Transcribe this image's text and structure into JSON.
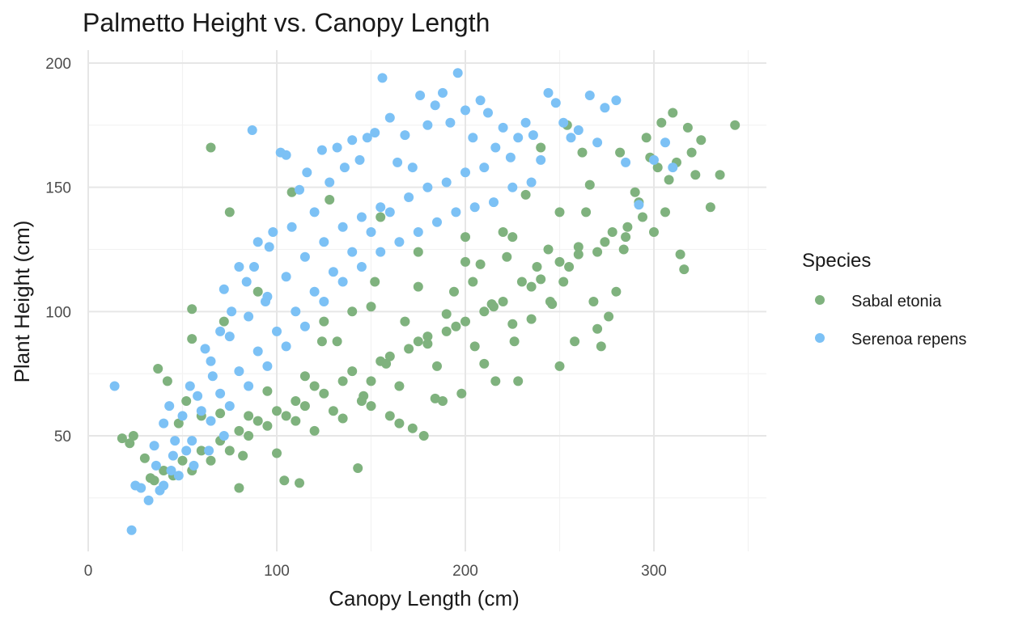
{
  "colors": {
    "sabal": "#7FB27E",
    "serenoa": "#7CC1F5",
    "grid_major": "#E6E6E6",
    "grid_minor": "#F2F2F2",
    "text": "#1A1A1A",
    "tick_text": "#4D4D4D"
  },
  "chart_data": {
    "type": "scatter",
    "title": "Palmetto Height vs. Canopy Length",
    "xlabel": "Canopy Length (cm)",
    "ylabel": "Plant Height (cm)",
    "xlim": [
      -1,
      360
    ],
    "ylim": [
      5,
      200
    ],
    "x_ticks": [
      0,
      100,
      200,
      300
    ],
    "y_ticks": [
      50,
      100,
      150,
      200
    ],
    "grid": true,
    "legend": {
      "title": "Species",
      "position": "right"
    },
    "series": [
      {
        "name": "Sabal etonia",
        "color": "#7FB27E",
        "points": [
          [
            18,
            49
          ],
          [
            22,
            47
          ],
          [
            24,
            50
          ],
          [
            30,
            41
          ],
          [
            33,
            33
          ],
          [
            37,
            77
          ],
          [
            42,
            72
          ],
          [
            48,
            55
          ],
          [
            52,
            64
          ],
          [
            55,
            101
          ],
          [
            55,
            89
          ],
          [
            60,
            58
          ],
          [
            65,
            166
          ],
          [
            70,
            59
          ],
          [
            72,
            96
          ],
          [
            75,
            140
          ],
          [
            80,
            29
          ],
          [
            82,
            42
          ],
          [
            85,
            58
          ],
          [
            90,
            108
          ],
          [
            95,
            68
          ],
          [
            100,
            43
          ],
          [
            104,
            32
          ],
          [
            108,
            148
          ],
          [
            110,
            56
          ],
          [
            112,
            31
          ],
          [
            115,
            74
          ],
          [
            120,
            52
          ],
          [
            124,
            88
          ],
          [
            128,
            145
          ],
          [
            132,
            88
          ],
          [
            135,
            57
          ],
          [
            140,
            100
          ],
          [
            143,
            37
          ],
          [
            146,
            66
          ],
          [
            150,
            62
          ],
          [
            152,
            112
          ],
          [
            155,
            138
          ],
          [
            158,
            79
          ],
          [
            160,
            58
          ],
          [
            165,
            55
          ],
          [
            168,
            96
          ],
          [
            172,
            53
          ],
          [
            175,
            124
          ],
          [
            178,
            50
          ],
          [
            180,
            87
          ],
          [
            184,
            65
          ],
          [
            188,
            64
          ],
          [
            190,
            99
          ],
          [
            194,
            108
          ],
          [
            198,
            67
          ],
          [
            200,
            130
          ],
          [
            204,
            112
          ],
          [
            208,
            119
          ],
          [
            210,
            79
          ],
          [
            214,
            103
          ],
          [
            216,
            72
          ],
          [
            220,
            132
          ],
          [
            222,
            122
          ],
          [
            226,
            88
          ],
          [
            228,
            72
          ],
          [
            232,
            147
          ],
          [
            235,
            97
          ],
          [
            238,
            118
          ],
          [
            240,
            166
          ],
          [
            244,
            125
          ],
          [
            246,
            103
          ],
          [
            250,
            78
          ],
          [
            252,
            112
          ],
          [
            254,
            175
          ],
          [
            258,
            88
          ],
          [
            260,
            123
          ],
          [
            262,
            164
          ],
          [
            264,
            140
          ],
          [
            266,
            151
          ],
          [
            268,
            104
          ],
          [
            270,
            93
          ],
          [
            272,
            86
          ],
          [
            274,
            128
          ],
          [
            276,
            98
          ],
          [
            278,
            132
          ],
          [
            280,
            108
          ],
          [
            282,
            164
          ],
          [
            284,
            125
          ],
          [
            286,
            134
          ],
          [
            290,
            148
          ],
          [
            292,
            144
          ],
          [
            294,
            138
          ],
          [
            296,
            170
          ],
          [
            298,
            162
          ],
          [
            300,
            132
          ],
          [
            302,
            158
          ],
          [
            304,
            176
          ],
          [
            306,
            140
          ],
          [
            308,
            153
          ],
          [
            310,
            180
          ],
          [
            312,
            160
          ],
          [
            314,
            123
          ],
          [
            316,
            117
          ],
          [
            318,
            174
          ],
          [
            320,
            164
          ],
          [
            322,
            155
          ],
          [
            325,
            169
          ],
          [
            330,
            142
          ],
          [
            335,
            155
          ],
          [
            343,
            175
          ],
          [
            150,
            72
          ],
          [
            170,
            85
          ],
          [
            190,
            92
          ],
          [
            210,
            100
          ],
          [
            230,
            112
          ],
          [
            250,
            120
          ],
          [
            120,
            70
          ],
          [
            140,
            76
          ],
          [
            160,
            82
          ],
          [
            180,
            90
          ],
          [
            200,
            96
          ],
          [
            220,
            104
          ],
          [
            240,
            113
          ],
          [
            260,
            126
          ],
          [
            130,
            60
          ],
          [
            145,
            64
          ],
          [
            165,
            70
          ],
          [
            185,
            78
          ],
          [
            205,
            86
          ],
          [
            225,
            95
          ],
          [
            245,
            104
          ],
          [
            100,
            60
          ],
          [
            110,
            64
          ],
          [
            90,
            56
          ],
          [
            80,
            52
          ],
          [
            70,
            48
          ],
          [
            60,
            44
          ],
          [
            50,
            40
          ],
          [
            40,
            36
          ],
          [
            35,
            32
          ],
          [
            45,
            34
          ],
          [
            55,
            36
          ],
          [
            65,
            40
          ],
          [
            75,
            44
          ],
          [
            85,
            50
          ],
          [
            95,
            54
          ],
          [
            105,
            58
          ],
          [
            115,
            62
          ],
          [
            125,
            67
          ],
          [
            135,
            72
          ],
          [
            155,
            80
          ],
          [
            175,
            88
          ],
          [
            195,
            94
          ],
          [
            215,
            102
          ],
          [
            235,
            110
          ],
          [
            255,
            118
          ],
          [
            270,
            124
          ],
          [
            285,
            130
          ],
          [
            125,
            96
          ],
          [
            150,
            102
          ],
          [
            175,
            110
          ],
          [
            200,
            120
          ],
          [
            225,
            130
          ],
          [
            250,
            140
          ]
        ]
      },
      {
        "name": "Serenoa repens",
        "color": "#7CC1F5",
        "points": [
          [
            14,
            70
          ],
          [
            23,
            12
          ],
          [
            25,
            30
          ],
          [
            28,
            29
          ],
          [
            32,
            24
          ],
          [
            35,
            46
          ],
          [
            38,
            28
          ],
          [
            40,
            55
          ],
          [
            43,
            62
          ],
          [
            46,
            48
          ],
          [
            50,
            58
          ],
          [
            54,
            70
          ],
          [
            58,
            66
          ],
          [
            62,
            85
          ],
          [
            66,
            74
          ],
          [
            70,
            92
          ],
          [
            72,
            109
          ],
          [
            76,
            100
          ],
          [
            80,
            118
          ],
          [
            84,
            112
          ],
          [
            87,
            173
          ],
          [
            90,
            128
          ],
          [
            94,
            104
          ],
          [
            98,
            132
          ],
          [
            102,
            164
          ],
          [
            105,
            163
          ],
          [
            108,
            134
          ],
          [
            112,
            149
          ],
          [
            116,
            156
          ],
          [
            120,
            140
          ],
          [
            124,
            165
          ],
          [
            128,
            152
          ],
          [
            132,
            166
          ],
          [
            136,
            158
          ],
          [
            140,
            169
          ],
          [
            144,
            161
          ],
          [
            148,
            170
          ],
          [
            152,
            172
          ],
          [
            156,
            194
          ],
          [
            160,
            178
          ],
          [
            164,
            160
          ],
          [
            168,
            171
          ],
          [
            172,
            158
          ],
          [
            176,
            187
          ],
          [
            180,
            175
          ],
          [
            184,
            183
          ],
          [
            188,
            188
          ],
          [
            192,
            176
          ],
          [
            196,
            196
          ],
          [
            200,
            181
          ],
          [
            204,
            170
          ],
          [
            208,
            185
          ],
          [
            212,
            180
          ],
          [
            216,
            166
          ],
          [
            220,
            174
          ],
          [
            224,
            162
          ],
          [
            228,
            170
          ],
          [
            232,
            176
          ],
          [
            236,
            171
          ],
          [
            240,
            161
          ],
          [
            244,
            188
          ],
          [
            248,
            184
          ],
          [
            252,
            176
          ],
          [
            256,
            170
          ],
          [
            260,
            173
          ],
          [
            266,
            187
          ],
          [
            270,
            168
          ],
          [
            274,
            182
          ],
          [
            280,
            185
          ],
          [
            285,
            160
          ],
          [
            292,
            143
          ],
          [
            300,
            161
          ],
          [
            306,
            168
          ],
          [
            310,
            158
          ],
          [
            60,
            60
          ],
          [
            70,
            67
          ],
          [
            80,
            76
          ],
          [
            90,
            84
          ],
          [
            100,
            92
          ],
          [
            110,
            100
          ],
          [
            120,
            108
          ],
          [
            130,
            116
          ],
          [
            140,
            124
          ],
          [
            150,
            132
          ],
          [
            160,
            140
          ],
          [
            170,
            146
          ],
          [
            180,
            150
          ],
          [
            190,
            152
          ],
          [
            200,
            156
          ],
          [
            210,
            158
          ],
          [
            65,
            80
          ],
          [
            75,
            90
          ],
          [
            85,
            98
          ],
          [
            95,
            106
          ],
          [
            105,
            114
          ],
          [
            115,
            122
          ],
          [
            125,
            128
          ],
          [
            135,
            134
          ],
          [
            145,
            138
          ],
          [
            155,
            142
          ],
          [
            45,
            42
          ],
          [
            55,
            48
          ],
          [
            65,
            56
          ],
          [
            75,
            62
          ],
          [
            85,
            70
          ],
          [
            95,
            78
          ],
          [
            105,
            86
          ],
          [
            115,
            94
          ],
          [
            125,
            104
          ],
          [
            135,
            112
          ],
          [
            145,
            118
          ],
          [
            155,
            124
          ],
          [
            165,
            128
          ],
          [
            175,
            132
          ],
          [
            185,
            136
          ],
          [
            195,
            140
          ],
          [
            205,
            142
          ],
          [
            215,
            144
          ],
          [
            225,
            150
          ],
          [
            235,
            152
          ],
          [
            40,
            30
          ],
          [
            48,
            34
          ],
          [
            56,
            38
          ],
          [
            64,
            44
          ],
          [
            72,
            50
          ],
          [
            36,
            38
          ],
          [
            44,
            36
          ],
          [
            52,
            44
          ],
          [
            88,
            118
          ],
          [
            96,
            126
          ]
        ]
      }
    ]
  }
}
